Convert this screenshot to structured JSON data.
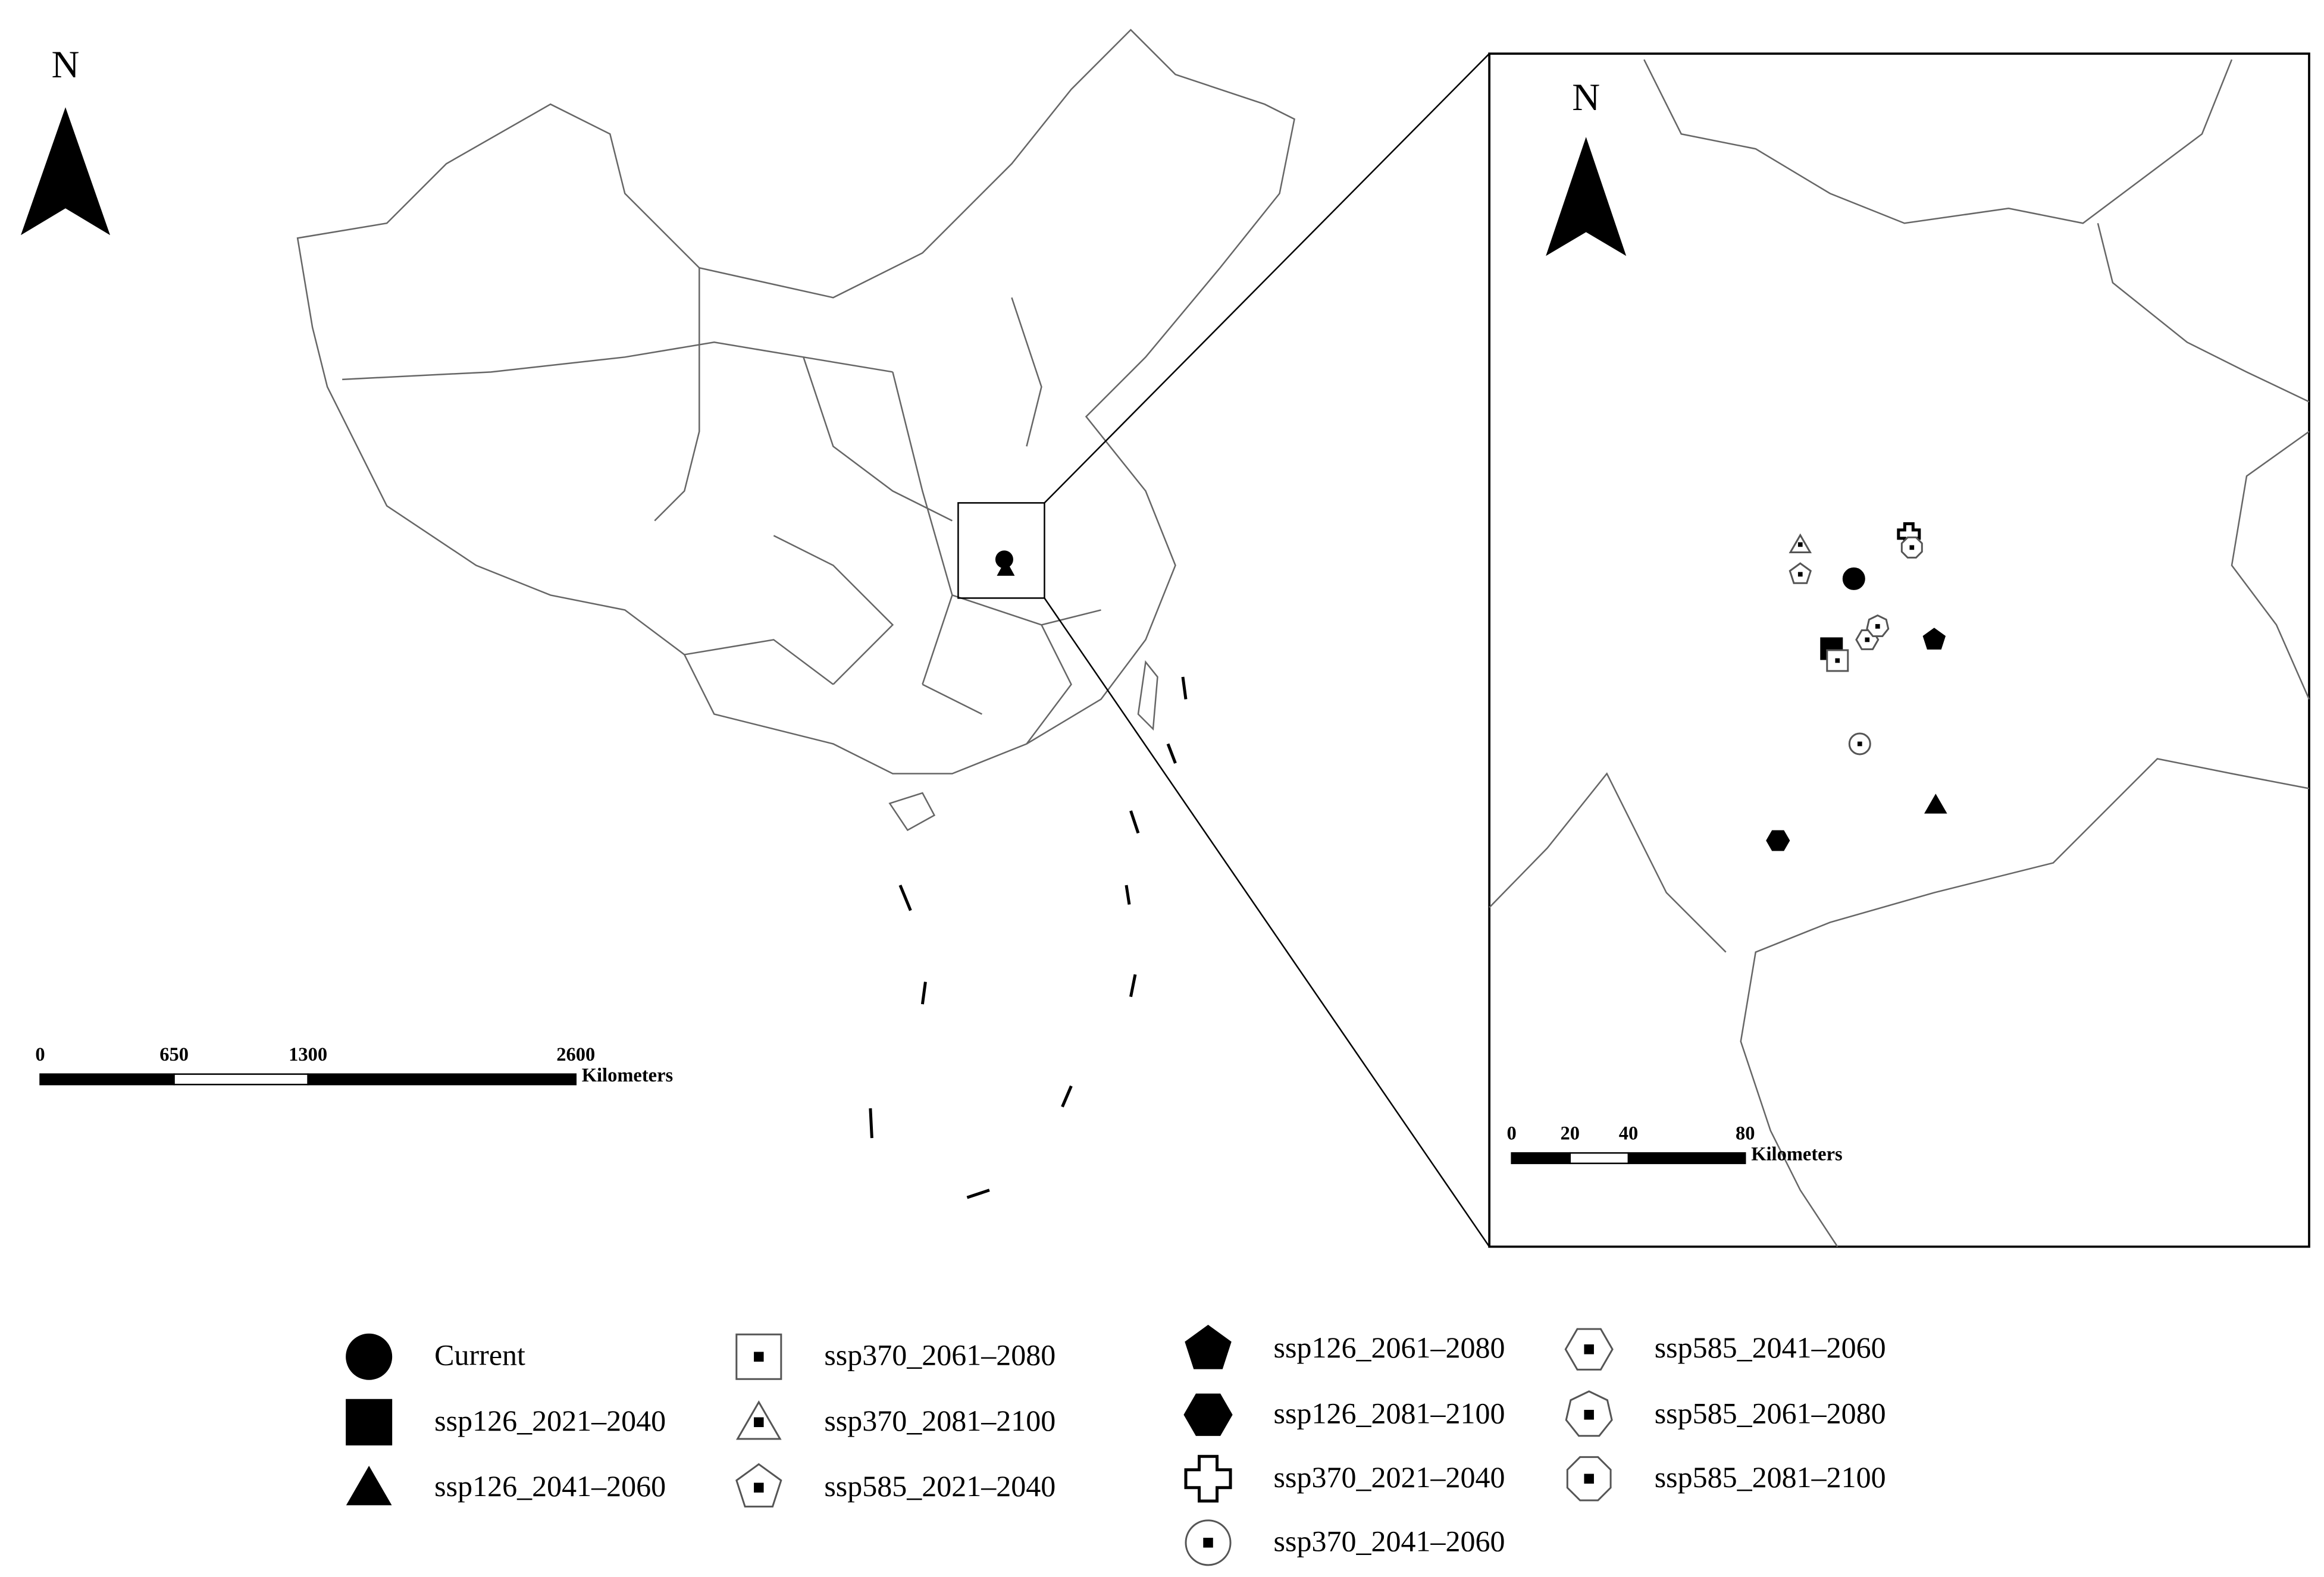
{
  "main_map": {
    "north": "N",
    "scale_bar": {
      "ticks": [
        0,
        650,
        1300,
        2600
      ],
      "unit": "Kilometers"
    }
  },
  "inset_map": {
    "north": "N",
    "scale_bar": {
      "ticks": [
        0,
        20,
        40,
        80
      ],
      "unit": "Kilometers"
    }
  },
  "legend": {
    "items": [
      {
        "label": "Current",
        "symbol": "filled-circle"
      },
      {
        "label": "ssp126_2021–2040",
        "symbol": "filled-square"
      },
      {
        "label": "ssp126_2041–2060",
        "symbol": "filled-triangle"
      },
      {
        "label": "ssp370_2061–2080",
        "symbol": "dot-square"
      },
      {
        "label": "ssp370_2081–2100",
        "symbol": "dot-triangle"
      },
      {
        "label": "ssp585_2021–2040",
        "symbol": "dot-pentagon"
      },
      {
        "label": "ssp126_2061–2080",
        "symbol": "filled-pentagon"
      },
      {
        "label": "ssp126_2081–2100",
        "symbol": "filled-hexagon"
      },
      {
        "label": "ssp370_2021–2040",
        "symbol": "cross"
      },
      {
        "label": "ssp370_2041–2060",
        "symbol": "dot-circle"
      },
      {
        "label": "ssp585_2041–2060",
        "symbol": "dot-hexagon"
      },
      {
        "label": "ssp585_2061–2080",
        "symbol": "dot-heptagon"
      },
      {
        "label": "ssp585_2081–2100",
        "symbol": "dot-octagon"
      }
    ]
  }
}
